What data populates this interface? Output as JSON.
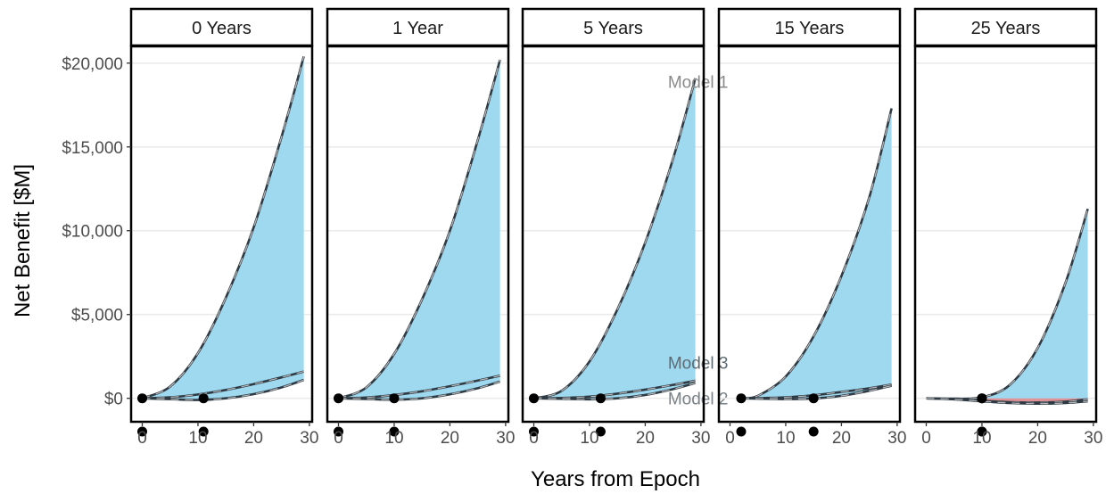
{
  "chart_data": {
    "type": "line",
    "xlabel": "Years from Epoch",
    "ylabel": "Net Benefit [$M]",
    "xlim": [
      -2,
      30.5
    ],
    "ylim": [
      -1400,
      21000
    ],
    "x_ticks": [
      0,
      10,
      20,
      30
    ],
    "x_tick_labels": [
      "0",
      "10",
      "20",
      "30"
    ],
    "y_ticks": [
      0,
      5000,
      10000,
      15000,
      20000
    ],
    "y_tick_labels": [
      "$0",
      "$5,000",
      "$10,000",
      "$15,000",
      "$20,000"
    ],
    "grid": true,
    "fill_color": "#9ed9f0",
    "negative_fill_color": "#f08080",
    "panels": [
      {
        "label": "0 Years",
        "start": 0,
        "series": [
          {
            "name": "Model 1",
            "x": [
              0,
              5,
              10,
              15,
              20,
              25,
              29
            ],
            "y": [
              0,
              700,
              2700,
              6000,
              10200,
              15600,
              20400
            ]
          },
          {
            "name": "Model 3",
            "x": [
              0,
              5,
              10,
              15,
              20,
              25,
              29
            ],
            "y": [
              0,
              60,
              230,
              500,
              850,
              1250,
              1600
            ]
          },
          {
            "name": "Model 2",
            "x": [
              0,
              5,
              10,
              15,
              20,
              25,
              29
            ],
            "y": [
              0,
              -50,
              -100,
              0,
              250,
              650,
              1100
            ]
          }
        ],
        "markers": [
          0,
          11
        ]
      },
      {
        "label": "1 Year",
        "start": 0,
        "series": [
          {
            "name": "Model 1",
            "x": [
              0,
              5,
              10,
              15,
              20,
              25,
              29
            ],
            "y": [
              0,
              650,
              2650,
              5900,
              10000,
              15400,
              20200
            ]
          },
          {
            "name": "Model 3",
            "x": [
              0,
              5,
              10,
              15,
              20,
              25,
              29
            ],
            "y": [
              0,
              50,
              200,
              420,
              720,
              1060,
              1350
            ]
          },
          {
            "name": "Model 2",
            "x": [
              0,
              5,
              10,
              15,
              20,
              25,
              29
            ],
            "y": [
              0,
              -40,
              -80,
              0,
              240,
              600,
              1000
            ]
          }
        ],
        "markers": [
          0,
          10
        ]
      },
      {
        "label": "5 Years",
        "start": 0,
        "series": [
          {
            "name": "Model 1",
            "x": [
              0,
              5,
              10,
              15,
              20,
              25,
              29
            ],
            "y": [
              0,
              450,
              2200,
              5300,
              9300,
              14300,
              19100
            ]
          },
          {
            "name": "Model 3",
            "x": [
              0,
              5,
              10,
              15,
              20,
              25,
              29
            ],
            "y": [
              0,
              20,
              100,
              280,
              520,
              800,
              1050
            ]
          },
          {
            "name": "Model 2",
            "x": [
              0,
              5,
              10,
              15,
              20,
              25,
              29
            ],
            "y": [
              0,
              -30,
              -60,
              0,
              200,
              550,
              920
            ]
          }
        ],
        "markers": [
          0,
          12
        ],
        "labels": [
          {
            "text": "Model 1",
            "x": 25,
            "y": 18900,
            "color": "#8a8a8a"
          },
          {
            "text": "Model 3",
            "x": 25,
            "y": 2150,
            "color": "#5f6b73"
          },
          {
            "text": "Model 2",
            "x": 25,
            "y": 0,
            "color": "#7a8288"
          }
        ]
      },
      {
        "label": "15 Years",
        "start": 2,
        "series": [
          {
            "name": "Model 1",
            "x": [
              2,
              5,
              10,
              15,
              20,
              25,
              29
            ],
            "y": [
              0,
              150,
              1300,
              3700,
              7300,
              12000,
              17300
            ]
          },
          {
            "name": "Model 3",
            "x": [
              2,
              5,
              10,
              15,
              20,
              25,
              29
            ],
            "y": [
              0,
              10,
              60,
              180,
              380,
              600,
              820
            ]
          },
          {
            "name": "Model 2",
            "x": [
              2,
              5,
              10,
              15,
              20,
              25,
              29
            ],
            "y": [
              0,
              -20,
              -50,
              -10,
              150,
              450,
              750
            ]
          }
        ],
        "markers": [
          2,
          15
        ]
      },
      {
        "label": "25 Years",
        "start": 0,
        "series": [
          {
            "name": "Model 1",
            "x": [
              0,
              5,
              10,
              15,
              20,
              25,
              29
            ],
            "y": [
              0,
              -20,
              60,
              800,
              3000,
              6900,
              11300
            ]
          },
          {
            "name": "Model 3",
            "x": [
              0,
              5,
              10,
              15,
              20,
              25,
              29
            ],
            "y": [
              0,
              -50,
              -150,
              -230,
              -250,
              -200,
              -50
            ]
          },
          {
            "name": "Model 2",
            "x": [
              0,
              5,
              10,
              15,
              20,
              25,
              29
            ],
            "y": [
              0,
              -60,
              -180,
              -280,
              -320,
              -280,
              -180
            ]
          }
        ],
        "markers": [
          10,
          10
        ]
      }
    ]
  }
}
